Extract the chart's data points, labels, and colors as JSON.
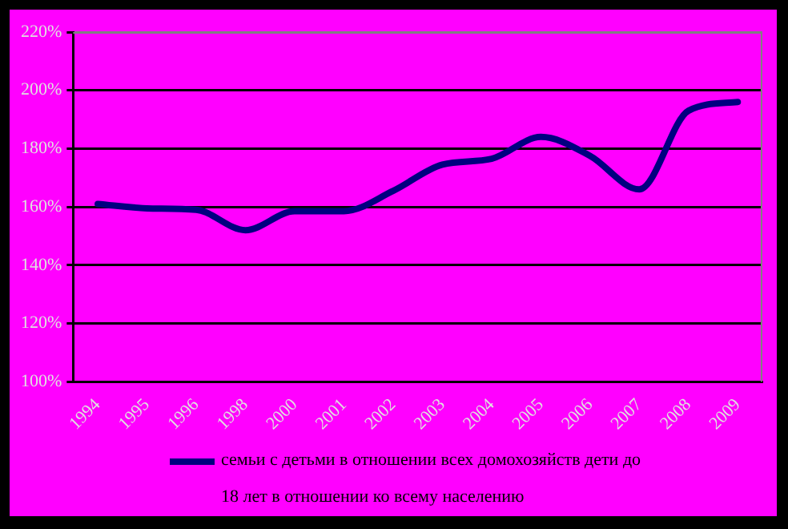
{
  "chart_data": {
    "type": "line",
    "categories": [
      "1994",
      "1995",
      "1996",
      "1998",
      "2000",
      "2001",
      "2002",
      "2003",
      "2004",
      "2005",
      "2006",
      "2007",
      "2008",
      "2009"
    ],
    "series": [
      {
        "name": "семьи с детьми в отношении всех домохозяйств дети до 18 лет в отношении ко всему населению",
        "color": "#000080",
        "values": [
          161,
          159.5,
          159,
          152,
          158.5,
          158.5,
          165.5,
          174.5,
          176.5,
          184,
          177.5,
          166,
          193,
          196
        ]
      }
    ],
    "ylim": [
      100,
      220
    ],
    "yticks": [
      {
        "value": 100,
        "label": "100%"
      },
      {
        "value": 120,
        "label": "120%"
      },
      {
        "value": 140,
        "label": "140%"
      },
      {
        "value": 160,
        "label": "160%"
      },
      {
        "value": 180,
        "label": "180%"
      },
      {
        "value": 200,
        "label": "200%"
      },
      {
        "value": 220,
        "label": "220%"
      }
    ],
    "grid": "y",
    "legend": "bottom",
    "marker": "none",
    "line_style": "solid"
  }
}
